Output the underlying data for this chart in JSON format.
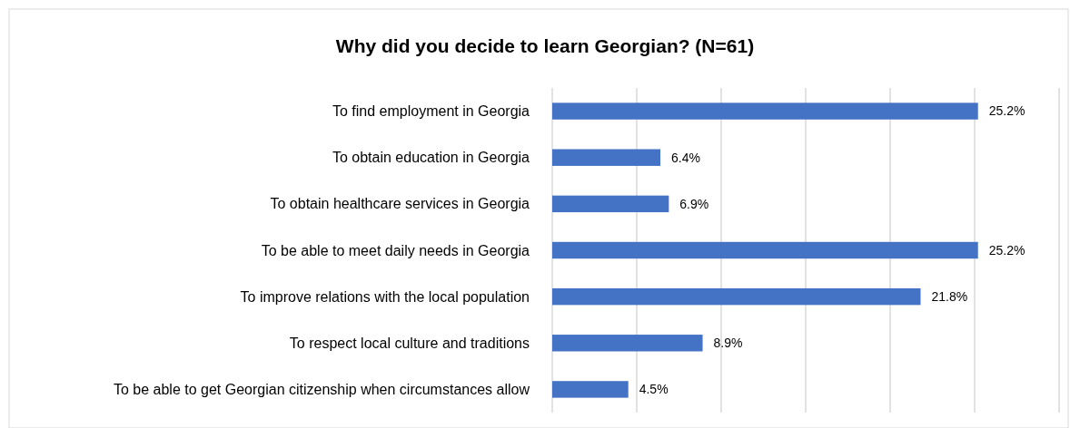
{
  "chart_data": {
    "type": "bar",
    "orientation": "horizontal",
    "title": "Why did you decide to learn Georgian? (N=61)",
    "categories": [
      "To find employment in Georgia",
      "To obtain education in Georgia",
      "To obtain healthcare services in Georgia",
      "To be able to meet daily needs in Georgia",
      "To improve relations with the local population",
      "To respect local culture and traditions",
      "To be able to get Georgian citizenship when circumstances allow"
    ],
    "values": [
      25.2,
      6.4,
      6.9,
      25.2,
      21.8,
      8.9,
      4.5
    ],
    "value_labels": [
      "25.2%",
      "6.4%",
      "6.9%",
      "25.2%",
      "21.8%",
      "8.9%",
      "4.5%"
    ],
    "color": "#4472c4",
    "xlim": [
      0,
      30
    ],
    "xticks": [
      {
        "value": 0,
        "label": null
      },
      {
        "value": 5,
        "label": null
      },
      {
        "value": 10,
        "label": null
      },
      {
        "value": 15,
        "label": null
      },
      {
        "value": 20,
        "label": null
      },
      {
        "value": 25,
        "label": null
      },
      {
        "value": 30,
        "label": null
      }
    ],
    "tick_labels": "y",
    "grid": "x"
  }
}
